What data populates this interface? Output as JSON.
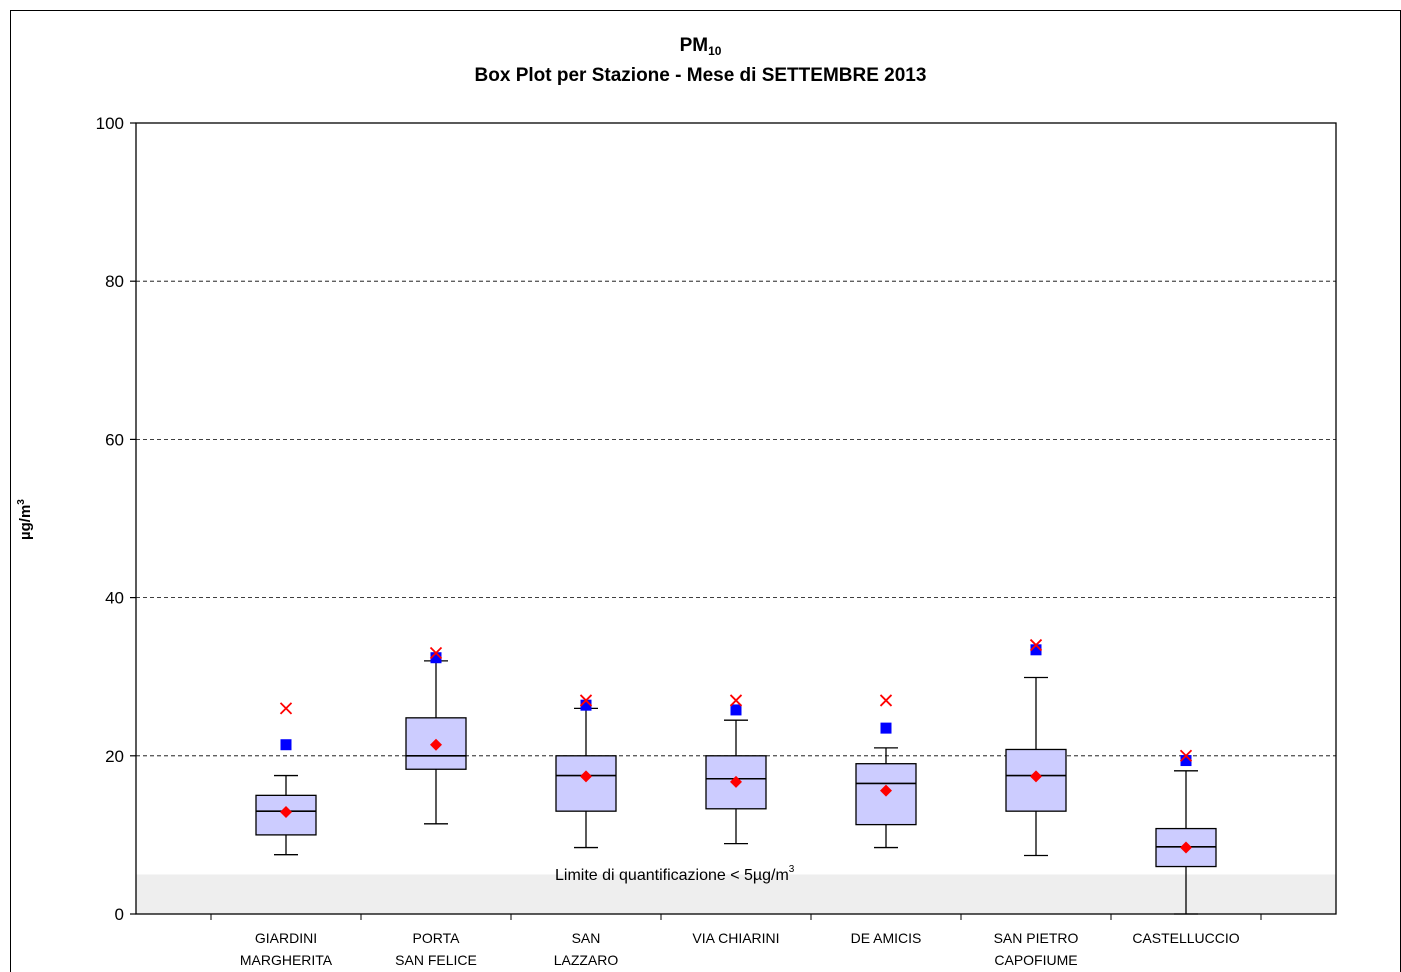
{
  "title": {
    "main": "PM",
    "main_sub": "10",
    "subtitle": "Box Plot per Stazione - Mese di SETTEMBRE 2013"
  },
  "ylabel": {
    "text": "µg/m",
    "sup": "3"
  },
  "note": {
    "text": "Limite di quantificazione < 5µg/m",
    "sup": "3"
  },
  "colors": {
    "box_fill": "#ccccff",
    "mean": "#ff0000",
    "max": "#ff0000",
    "p95": "#0000ff",
    "band": "#eeeeee"
  },
  "chart_data": {
    "type": "box",
    "ylim": [
      0,
      100
    ],
    "yticks": [
      0,
      20,
      40,
      60,
      80,
      100
    ],
    "grid": "dashed horizontal",
    "quantification_limit": 5,
    "categories": [
      {
        "line1": "GIARDINI",
        "line2": "MARGHERITA"
      },
      {
        "line1": "PORTA",
        "line2": "SAN FELICE"
      },
      {
        "line1": "SAN",
        "line2": "LAZZARO"
      },
      {
        "line1": "VIA CHIARINI",
        "line2": ""
      },
      {
        "line1": "DE AMICIS",
        "line2": ""
      },
      {
        "line1": "SAN PIETRO",
        "line2": "CAPOFIUME"
      },
      {
        "line1": "CASTELLUCCIO",
        "line2": ""
      }
    ],
    "boxes": [
      {
        "whisker_low": 7.5,
        "q1": 10,
        "median": 13,
        "q3": 15,
        "whisker_high": 17.5,
        "mean": 12.9,
        "p95": 21.4,
        "max": 26
      },
      {
        "whisker_low": 11.4,
        "q1": 18.3,
        "median": 20,
        "q3": 24.8,
        "whisker_high": 32,
        "mean": 21.4,
        "p95": 32.4,
        "max": 33
      },
      {
        "whisker_low": 8.4,
        "q1": 13,
        "median": 17.5,
        "q3": 20,
        "whisker_high": 26,
        "mean": 17.4,
        "p95": 26.4,
        "max": 27
      },
      {
        "whisker_low": 8.9,
        "q1": 13.3,
        "median": 17.1,
        "q3": 20,
        "whisker_high": 24.5,
        "mean": 16.7,
        "p95": 25.8,
        "max": 27
      },
      {
        "whisker_low": 8.4,
        "q1": 11.3,
        "median": 16.5,
        "q3": 19,
        "whisker_high": 21,
        "mean": 15.6,
        "p95": 23.5,
        "max": 27
      },
      {
        "whisker_low": 7.4,
        "q1": 13,
        "median": 17.5,
        "q3": 20.8,
        "whisker_high": 29.9,
        "mean": 17.4,
        "p95": 33.4,
        "max": 34
      },
      {
        "whisker_low": 0,
        "q1": 6,
        "median": 8.5,
        "q3": 10.8,
        "whisker_high": 18.1,
        "mean": 8.4,
        "p95": 19.4,
        "max": 20
      }
    ]
  }
}
